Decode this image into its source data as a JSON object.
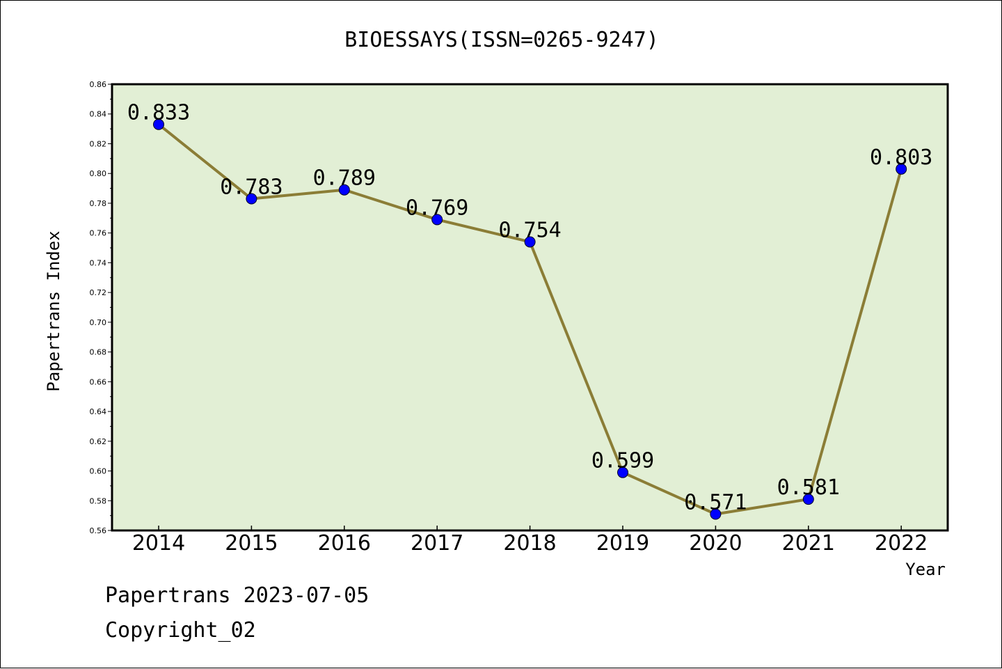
{
  "chart_data": {
    "type": "line",
    "title": "BIOESSAYS(ISSN=0265-9247)",
    "xlabel": "Year",
    "ylabel": "Papertrans Index",
    "categories": [
      "2014",
      "2015",
      "2016",
      "2017",
      "2018",
      "2019",
      "2020",
      "2021",
      "2022"
    ],
    "series": [
      {
        "values": [
          0.833,
          0.783,
          0.789,
          0.769,
          0.754,
          0.599,
          0.571,
          0.581,
          0.803
        ]
      }
    ],
    "data_labels": [
      "0.833",
      "0.783",
      "0.789",
      "0.769",
      "0.754",
      "0.599",
      "0.571",
      "0.581",
      "0.803"
    ],
    "ylim": [
      0.56,
      0.86
    ],
    "yticks": [
      "0.56",
      "0.58",
      "0.60",
      "0.62",
      "0.64",
      "0.66",
      "0.68",
      "0.70",
      "0.72",
      "0.74",
      "0.76",
      "0.78",
      "0.80",
      "0.82",
      "0.84",
      "0.86"
    ],
    "grid": false,
    "legend": "none",
    "colors": {
      "plot_background": "#e2efd5",
      "line": "#8b7d36",
      "marker": "#0000ff"
    }
  },
  "footer": {
    "date_line": "Papertrans 2023-07-05",
    "copyright": "Copyright_02"
  }
}
